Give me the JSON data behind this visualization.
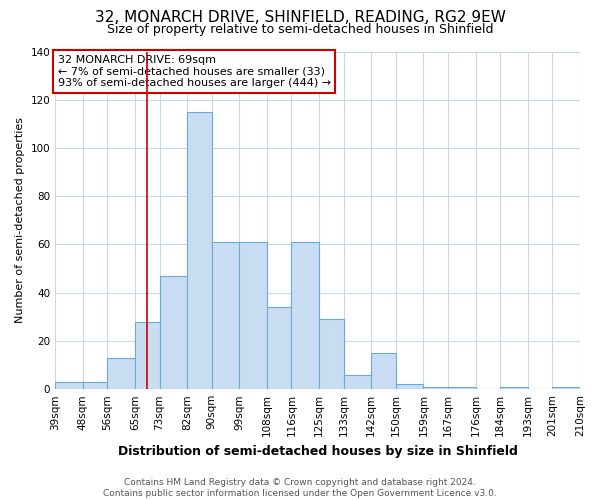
{
  "title": "32, MONARCH DRIVE, SHINFIELD, READING, RG2 9EW",
  "subtitle": "Size of property relative to semi-detached houses in Shinfield",
  "xlabel": "Distribution of semi-detached houses by size in Shinfield",
  "ylabel": "Number of semi-detached properties",
  "bar_labels": [
    "39sqm",
    "48sqm",
    "56sqm",
    "65sqm",
    "73sqm",
    "82sqm",
    "90sqm",
    "99sqm",
    "108sqm",
    "116sqm",
    "125sqm",
    "133sqm",
    "142sqm",
    "150sqm",
    "159sqm",
    "167sqm",
    "176sqm",
    "184sqm",
    "193sqm",
    "201sqm",
    "210sqm"
  ],
  "bin_edges": [
    39,
    48,
    56,
    65,
    73,
    82,
    90,
    99,
    108,
    116,
    125,
    133,
    142,
    150,
    159,
    167,
    176,
    184,
    193,
    201,
    210
  ],
  "heights": [
    3,
    3,
    13,
    28,
    47,
    115,
    61,
    61,
    34,
    61,
    29,
    6,
    15,
    2,
    1,
    1,
    0,
    1,
    0,
    1
  ],
  "bar_color": "#c9ddf2",
  "bar_edge_color": "#6aaad4",
  "vline_x": 69,
  "vline_color": "#cc0000",
  "annotation_text": "32 MONARCH DRIVE: 69sqm\n← 7% of semi-detached houses are smaller (33)\n93% of semi-detached houses are larger (444) →",
  "annotation_box_edge_color": "#cc0000",
  "annotation_box_face_color": "#ffffff",
  "ylim": [
    0,
    140
  ],
  "yticks": [
    0,
    20,
    40,
    60,
    80,
    100,
    120,
    140
  ],
  "footer_text": "Contains HM Land Registry data © Crown copyright and database right 2024.\nContains public sector information licensed under the Open Government Licence v3.0.",
  "bg_color": "#ffffff",
  "grid_color": "#c8d8ea",
  "title_fontsize": 11,
  "subtitle_fontsize": 9,
  "ylabel_fontsize": 8,
  "xlabel_fontsize": 9,
  "tick_fontsize": 7.5,
  "annotation_fontsize": 8,
  "footer_fontsize": 6.5
}
